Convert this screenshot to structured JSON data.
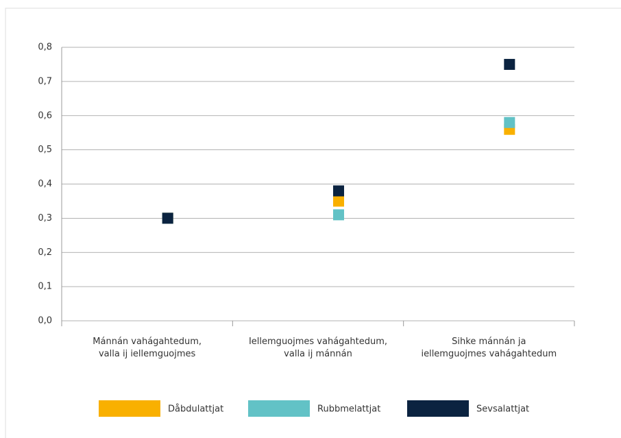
{
  "chart_data": {
    "type": "scatter",
    "categories": [
      "Mánnán vahágahtedum,\nvalla ij iellemguojmes",
      "Iellemguojmes vahágahtedum,\nvalla ij mánnán",
      "Sihke mánnán ja\niellemguojmes vahágahtedum"
    ],
    "series": [
      {
        "name": "Dåbdulattjat",
        "color": "#f9b000",
        "values": [
          0.3,
          0.35,
          0.56
        ]
      },
      {
        "name": "Rubbmelattjat",
        "color": "#62c2c6",
        "values": [
          0.3,
          0.31,
          0.58
        ]
      },
      {
        "name": "Sevsalattjat",
        "color": "#0b2340",
        "values": [
          0.3,
          0.38,
          0.75
        ]
      }
    ],
    "ylim": [
      0,
      0.8
    ],
    "yticks": [
      {
        "value": 0,
        "label": "0,0"
      },
      {
        "value": 0.1,
        "label": "0,1"
      },
      {
        "value": 0.2,
        "label": "0,2"
      },
      {
        "value": 0.3,
        "label": "0,3"
      },
      {
        "value": 0.4,
        "label": "0,4"
      },
      {
        "value": 0.5,
        "label": "0,5"
      },
      {
        "value": 0.6,
        "label": "0,6"
      },
      {
        "value": 0.7,
        "label": "0,7"
      },
      {
        "value": 0.8,
        "label": "0,8"
      }
    ],
    "grid": true
  }
}
